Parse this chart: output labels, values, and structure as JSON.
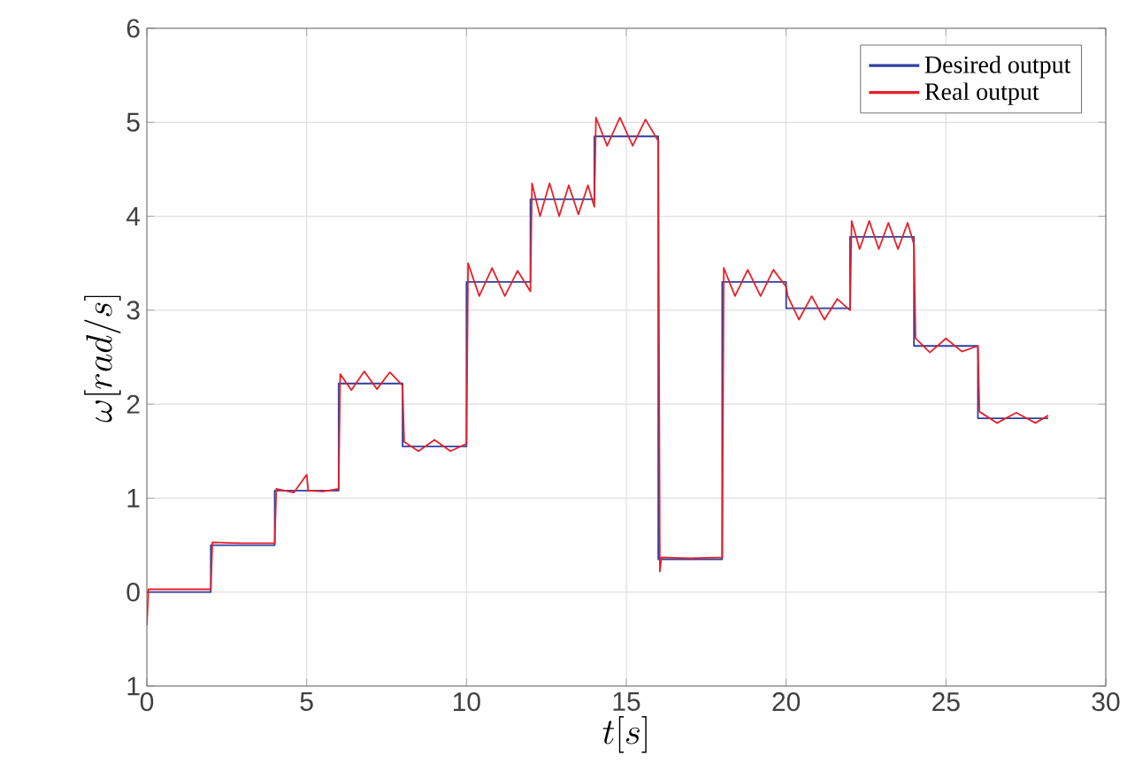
{
  "chart_data": {
    "type": "line",
    "xlabel": "t[s]",
    "ylabel": "\\omega[rad/s]",
    "xlim": [
      0,
      30
    ],
    "xticks": [
      0,
      5,
      10,
      15,
      20,
      25,
      30
    ],
    "ylim": [
      -1,
      6
    ],
    "yticks": [
      {
        "value": -1,
        "label": "1"
      },
      0,
      1,
      2,
      3,
      4,
      5,
      6
    ],
    "grid": true,
    "legend": "top right",
    "series": [
      {
        "name": "Desired output",
        "type": "step",
        "color": "#2e3f9e",
        "x": [
          0,
          2,
          4,
          6,
          8,
          10,
          12,
          14,
          16,
          18,
          20,
          22,
          24,
          26,
          28.2
        ],
        "values": [
          0,
          0.5,
          1.08,
          2.22,
          1.55,
          3.3,
          4.18,
          4.85,
          0.35,
          3.3,
          3.02,
          3.78,
          2.62,
          1.85,
          1.85
        ]
      },
      {
        "name": "Real output",
        "color": "#e8202a",
        "x": [
          0,
          0.05,
          1,
          2,
          2.05,
          3,
          4,
          4.05,
          4.6,
          5,
          5.05,
          5.5,
          6,
          6.05,
          6.4,
          6.8,
          7.2,
          7.6,
          8,
          8.05,
          8.5,
          9,
          9.5,
          10,
          10.05,
          10.4,
          10.8,
          11.2,
          11.6,
          12,
          12.05,
          12.3,
          12.6,
          12.9,
          13.2,
          13.5,
          13.8,
          14,
          14.05,
          14.4,
          14.8,
          15.2,
          15.6,
          16,
          16.05,
          16.1,
          17,
          18,
          18.05,
          18.4,
          18.8,
          19.2,
          19.6,
          20,
          20.05,
          20.4,
          20.8,
          21.2,
          21.6,
          22,
          22.05,
          22.3,
          22.6,
          22.9,
          23.2,
          23.5,
          23.8,
          24,
          24.05,
          24.5,
          25,
          25.5,
          26,
          26.05,
          26.6,
          27.2,
          27.8,
          28.2
        ],
        "values": [
          -0.35,
          0.03,
          0.03,
          0.03,
          0.53,
          0.52,
          0.52,
          1.1,
          1.06,
          1.25,
          1.08,
          1.07,
          1.1,
          2.32,
          2.15,
          2.35,
          2.16,
          2.34,
          2.2,
          1.6,
          1.5,
          1.62,
          1.5,
          1.58,
          3.5,
          3.15,
          3.45,
          3.15,
          3.42,
          3.2,
          4.35,
          4.0,
          4.35,
          4.0,
          4.33,
          4.02,
          4.33,
          4.1,
          5.05,
          4.75,
          5.05,
          4.75,
          5.03,
          4.8,
          0.22,
          0.37,
          0.36,
          0.37,
          3.45,
          3.15,
          3.43,
          3.15,
          3.43,
          3.25,
          3.15,
          2.9,
          3.15,
          2.9,
          3.12,
          3.0,
          3.95,
          3.65,
          3.95,
          3.65,
          3.93,
          3.65,
          3.93,
          3.7,
          2.7,
          2.55,
          2.7,
          2.56,
          2.62,
          1.92,
          1.8,
          1.91,
          1.8,
          1.88
        ]
      }
    ]
  }
}
